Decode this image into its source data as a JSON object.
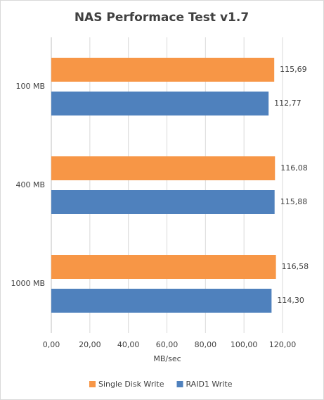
{
  "chart_data": {
    "type": "hbar",
    "title": "NAS Performace Test v1.7",
    "categories": [
      "100 MB",
      "400 MB",
      "1000 MB"
    ],
    "series": [
      {
        "name": "Single Disk Write",
        "color": "#f79646",
        "values": [
          115.69,
          116.08,
          116.58
        ],
        "value_labels": [
          "115,69",
          "116,08",
          "116,58"
        ]
      },
      {
        "name": "RAID1 Write",
        "color": "#4f81bd",
        "values": [
          112.77,
          115.88,
          114.3
        ],
        "value_labels": [
          "112,77",
          "115,88",
          "114,30"
        ]
      }
    ],
    "xlabel": "MB/sec",
    "xlim": [
      0,
      120
    ],
    "xticks": [
      {
        "value": 0,
        "label": "0,00"
      },
      {
        "value": 20,
        "label": "20,00"
      },
      {
        "value": 40,
        "label": "40,00"
      },
      {
        "value": 60,
        "label": "60,00"
      },
      {
        "value": 80,
        "label": "80,00"
      },
      {
        "value": 100,
        "label": "100,00"
      },
      {
        "value": 120,
        "label": "120,00"
      }
    ],
    "grid": true,
    "legend": "bottom"
  }
}
